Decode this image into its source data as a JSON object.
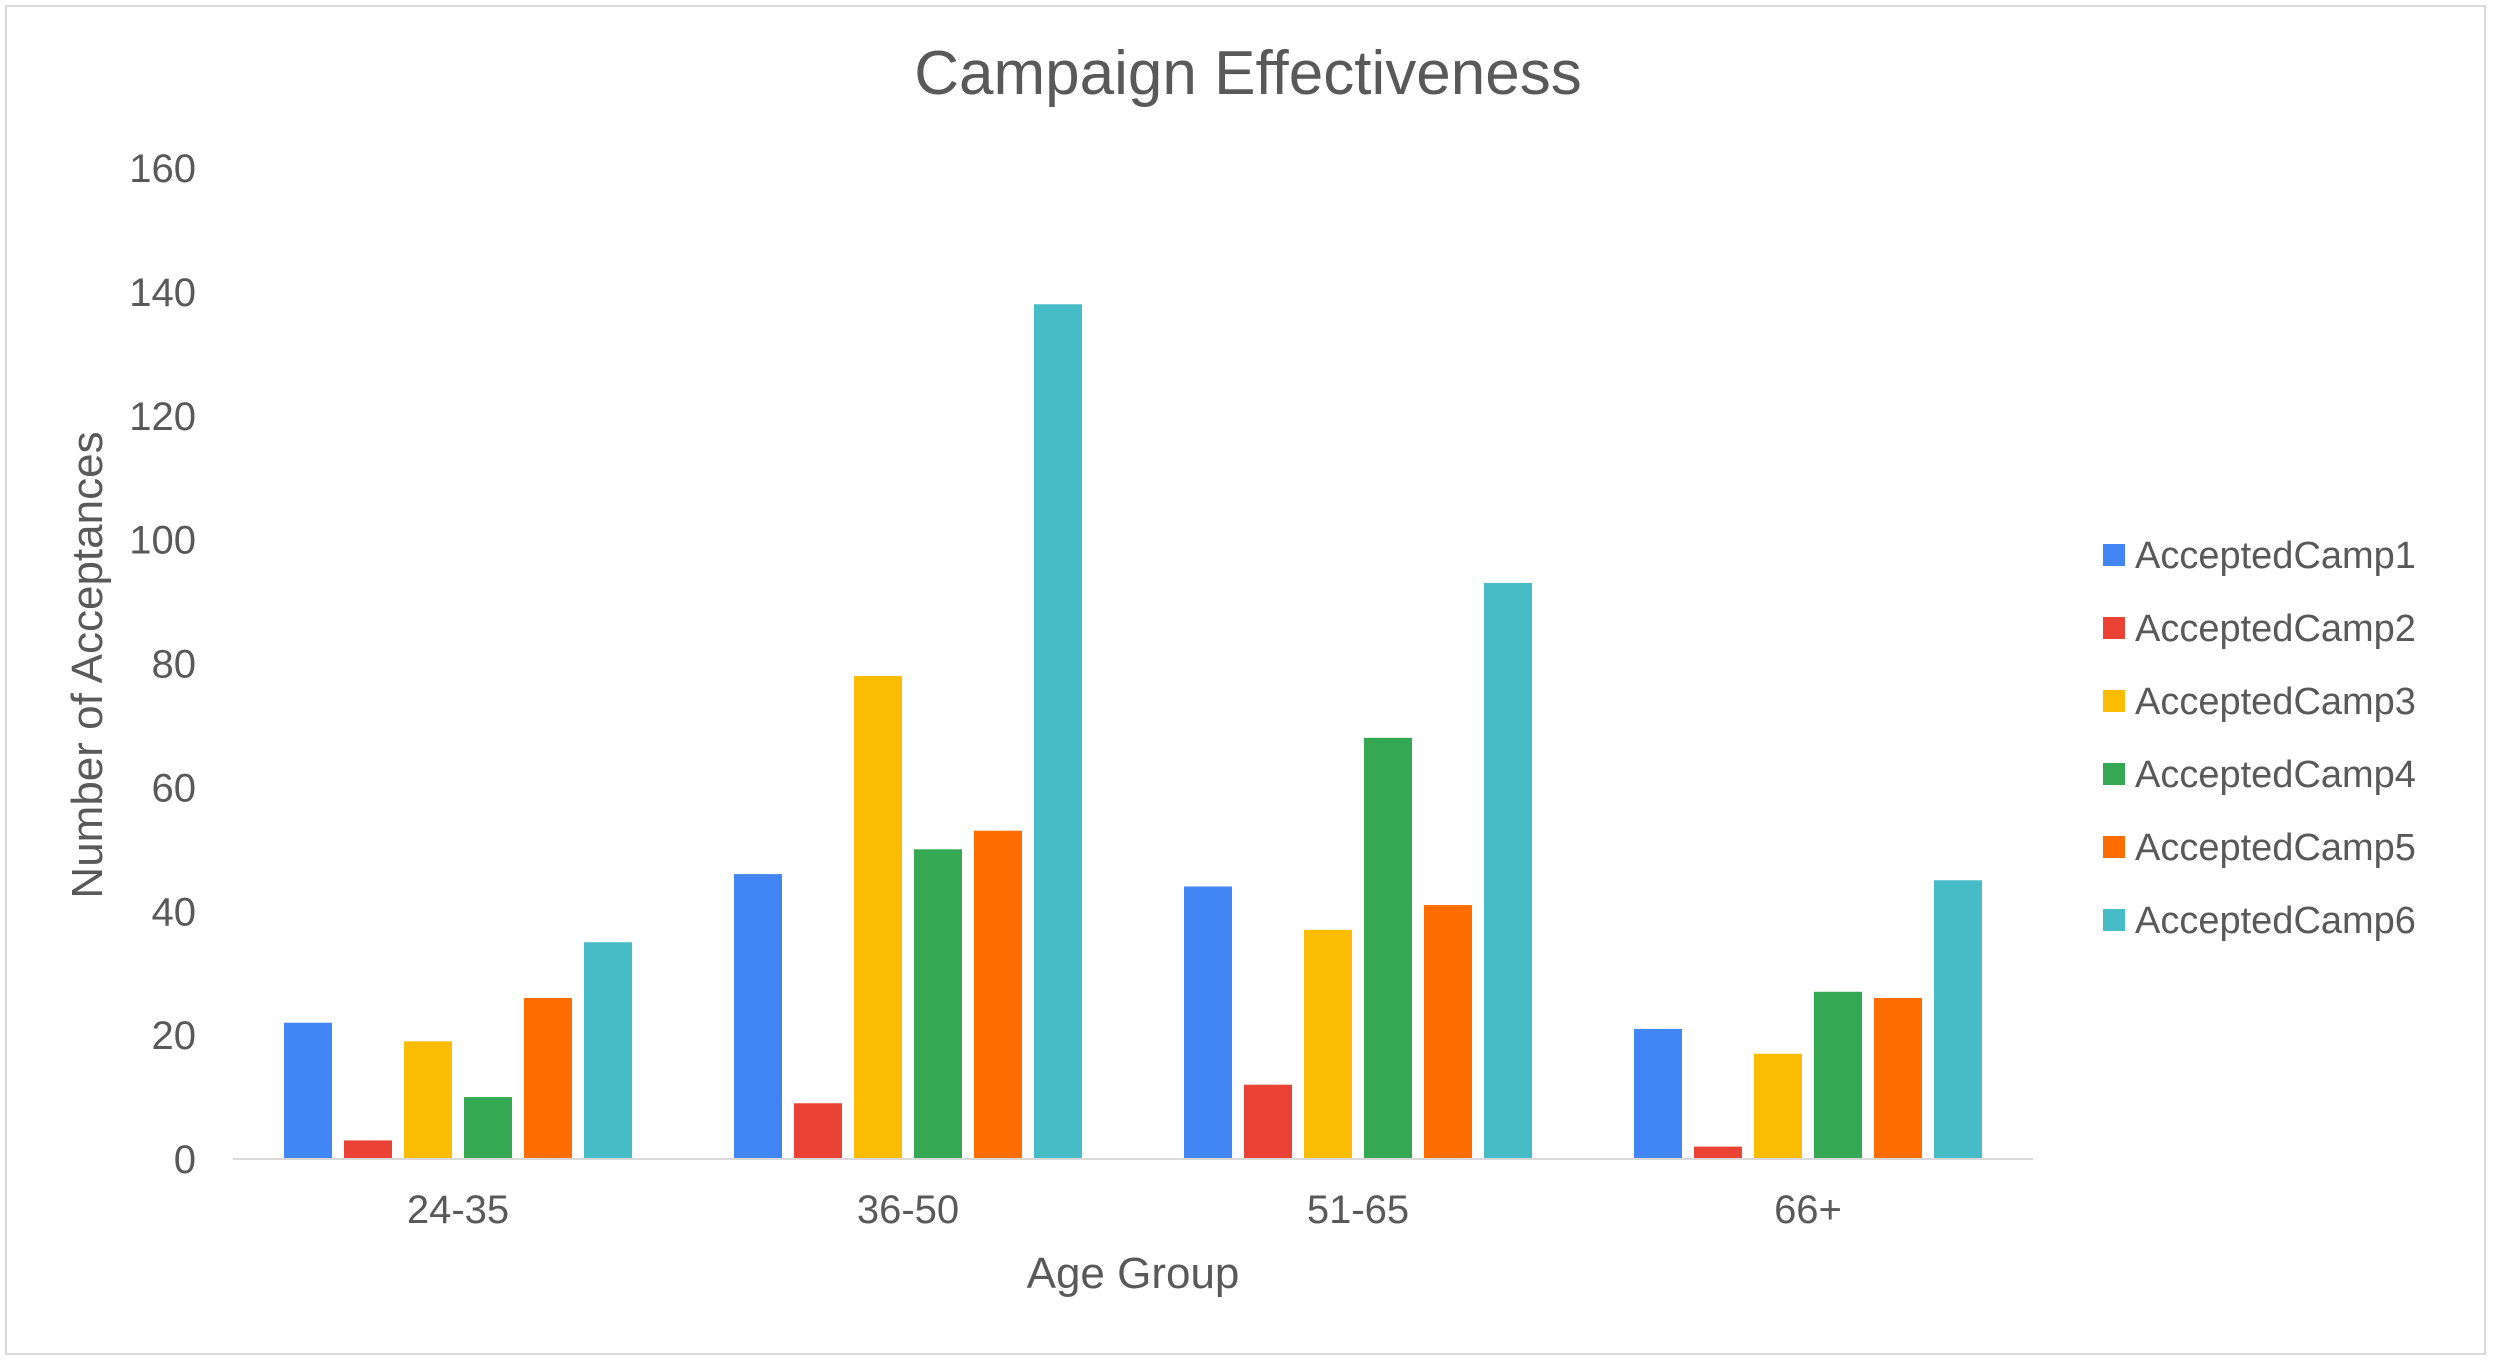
{
  "chart_data": {
    "type": "bar",
    "title": "Campaign Effectiveness",
    "xlabel": "Age Group",
    "ylabel": "Number of Acceptances",
    "ylim": [
      0,
      160
    ],
    "yticks": [
      0,
      20,
      40,
      60,
      80,
      100,
      120,
      140,
      160
    ],
    "grid": false,
    "legend_position": "right",
    "categories": [
      "24-35",
      "36-50",
      "51-65",
      "66+"
    ],
    "series": [
      {
        "name": "AcceptedCamp1",
        "color": "#4285F4",
        "values": [
          22,
          46,
          44,
          21
        ]
      },
      {
        "name": "AcceptedCamp2",
        "color": "#EA4335",
        "values": [
          3,
          9,
          12,
          2
        ]
      },
      {
        "name": "AcceptedCamp3",
        "color": "#FBBC04",
        "values": [
          19,
          78,
          37,
          17
        ]
      },
      {
        "name": "AcceptedCamp4",
        "color": "#34A853",
        "values": [
          10,
          50,
          68,
          27
        ]
      },
      {
        "name": "AcceptedCamp5",
        "color": "#FF6D01",
        "values": [
          26,
          53,
          41,
          26
        ]
      },
      {
        "name": "AcceptedCamp6",
        "color": "#46BDC6",
        "values": [
          35,
          138,
          93,
          45
        ]
      }
    ]
  }
}
